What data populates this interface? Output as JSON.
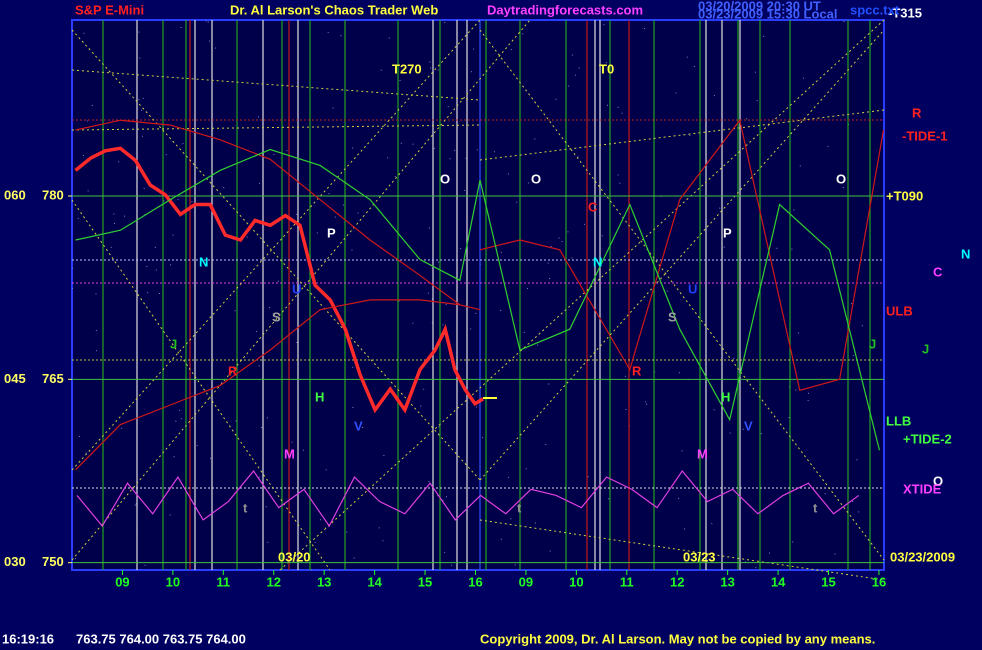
{
  "header": {
    "symbol": "S&P E-Mini",
    "title": "Dr. Al Larson's Chaos Trader Web",
    "site": "Daytradingforecasts.com",
    "stamp_ut": "03/20/2009 20:30 UT",
    "stamp_local": "03/23/2009 15:30 Local",
    "file": "spcc.txt"
  },
  "footer": {
    "time": "16:19:16",
    "quote": "763.75 764.00 763.75 764.00",
    "copyright": "Copyright 2009, Dr. Al Larson. May not be copied by any means."
  },
  "chart_data": {
    "type": "line",
    "xlim": [
      -1,
      15.1
    ],
    "xticks": [
      {
        "value": 0,
        "label": "09"
      },
      {
        "value": 1,
        "label": "10"
      },
      {
        "value": 2,
        "label": "11"
      },
      {
        "value": 3,
        "label": "12"
      },
      {
        "value": 4,
        "label": "13"
      },
      {
        "value": 5,
        "label": "14"
      },
      {
        "value": 6,
        "label": "15"
      },
      {
        "value": 7,
        "label": "16"
      },
      {
        "value": 8,
        "label": "09"
      },
      {
        "value": 9,
        "label": "10"
      },
      {
        "value": 10,
        "label": "11"
      },
      {
        "value": 11,
        "label": "12"
      },
      {
        "value": 12,
        "label": "13"
      },
      {
        "value": 13,
        "label": "14"
      },
      {
        "value": 14,
        "label": "15"
      },
      {
        "value": 15,
        "label": "16"
      }
    ],
    "ylim": [
      749.4,
      794.4
    ],
    "yticks": [
      750,
      765,
      780
    ],
    "y2lim": [
      29.4,
      74.4
    ],
    "y2ticks": [
      {
        "value": 30,
        "label": "030"
      },
      {
        "value": 45,
        "label": "045"
      },
      {
        "value": 60,
        "label": "060"
      }
    ],
    "series": [
      {
        "color": "#ff2a2a",
        "x": [
          -0.93,
          -0.63,
          -0.34,
          -0.04,
          0.26,
          0.55,
          0.85,
          1.15,
          1.44,
          1.74,
          2.04,
          2.34,
          2.63,
          2.93,
          3.23,
          3.52,
          3.82,
          4.12,
          4.42,
          4.71,
          5.01,
          5.31,
          5.6,
          5.9,
          6.2,
          6.4,
          6.59,
          6.79,
          6.99,
          7.15
        ],
        "values": [
          782.1,
          783.1,
          783.7,
          783.9,
          782.9,
          780.9,
          780.1,
          778.5,
          779.3,
          779.3,
          776.8,
          776.4,
          778.0,
          777.6,
          778.4,
          777.6,
          772.7,
          771.5,
          769.1,
          765.4,
          762.5,
          764.2,
          762.5,
          765.8,
          767.4,
          769.1,
          765.8,
          764.2,
          763.0,
          763.4
        ]
      },
      {
        "color": "#d01818",
        "x": [
          -0.93,
          -0.04,
          0.95,
          1.94,
          2.93,
          3.92,
          4.91,
          5.9,
          6.69,
          7.09
        ],
        "values": [
          785.4,
          786.2,
          785.8,
          784.6,
          783.0,
          779.7,
          776.4,
          773.5,
          771.1,
          770.7
        ]
      },
      {
        "color": "#d01818",
        "x": [
          -0.93,
          -0.04,
          0.95,
          1.94,
          2.93,
          3.92,
          4.91,
          5.9,
          6.69
        ],
        "values": [
          757.6,
          761.3,
          762.9,
          764.5,
          767.4,
          770.7,
          771.5,
          771.5,
          771.1
        ]
      },
      {
        "color": "#d01818",
        "x": [
          7.09,
          7.88,
          8.67,
          10.06,
          11.05,
          12.24,
          13.43,
          14.22,
          15.09
        ],
        "values": [
          775.6,
          776.4,
          775.6,
          765.8,
          779.7,
          786.2,
          764.1,
          765.0,
          785.4
        ]
      },
      {
        "color": "#30d030",
        "x": [
          -0.93,
          -0.04,
          0.95,
          1.94,
          2.93,
          3.92,
          4.91,
          5.9,
          6.69,
          7.09,
          7.88,
          8.87,
          10.06,
          11.05,
          12.04,
          13.03,
          14.02,
          15.01
        ],
        "values": [
          776.4,
          777.2,
          779.7,
          782.1,
          783.8,
          782.5,
          779.7,
          774.8,
          773.1,
          781.3,
          767.4,
          769.1,
          779.3,
          769.1,
          761.7,
          779.3,
          775.6,
          759.2
        ]
      },
      {
        "color": "#e040e0",
        "x": [
          -0.9,
          -0.4,
          0.1,
          0.6,
          1.1,
          1.6,
          2.1,
          2.6,
          3.1,
          3.6,
          4.1,
          4.6,
          5.1,
          5.6,
          6.1,
          6.6,
          7.1,
          7.6,
          8.1,
          8.6,
          9.1,
          9.6,
          10.1,
          10.6,
          11.1,
          11.6,
          12.1,
          12.6,
          13.1,
          13.6,
          14.1,
          14.6
        ],
        "values": [
          755.5,
          753.0,
          756.5,
          754.0,
          757.0,
          753.5,
          755.0,
          757.5,
          754.5,
          756.0,
          753.0,
          757.0,
          755.0,
          754.0,
          756.5,
          753.5,
          755.5,
          754.0,
          756.0,
          755.5,
          754.5,
          757.0,
          756.0,
          754.5,
          757.5,
          755.0,
          756.0,
          754.0,
          755.5,
          756.5,
          754.0,
          755.5
        ]
      }
    ],
    "annotations": [
      {
        "text": "T270",
        "color": "#ffff40"
      },
      {
        "text": "T0",
        "color": "#ffff40"
      },
      {
        "text": "O",
        "color": "#ffffff"
      },
      {
        "text": "O",
        "color": "#ffffff"
      },
      {
        "text": "O",
        "color": "#ffffff"
      },
      {
        "text": "P",
        "color": "#ffffff"
      },
      {
        "text": "P",
        "color": "#ffffff"
      },
      {
        "text": "N",
        "color": "#00ffff"
      },
      {
        "text": "N",
        "color": "#00ffff"
      },
      {
        "text": "S",
        "color": "#a0a0a0"
      },
      {
        "text": "S",
        "color": "#a0a0a0"
      },
      {
        "text": "C",
        "color": "#ff2020"
      },
      {
        "text": "R",
        "color": "#ff2020"
      },
      {
        "text": "R",
        "color": "#ff2020"
      },
      {
        "text": "J",
        "color": "#20c020"
      },
      {
        "text": "J",
        "color": "#20c020"
      },
      {
        "text": "H",
        "color": "#40ff40"
      },
      {
        "text": "H",
        "color": "#40ff40"
      },
      {
        "text": "V",
        "color": "#3050ff"
      },
      {
        "text": "V",
        "color": "#3050ff"
      },
      {
        "text": "M",
        "color": "#ff40ff"
      },
      {
        "text": "M",
        "color": "#ff40ff"
      },
      {
        "text": "t",
        "color": "#909090"
      },
      {
        "text": "t",
        "color": "#909090"
      },
      {
        "text": "t",
        "color": "#909090"
      },
      {
        "text": "U",
        "color": "#2040ff"
      },
      {
        "text": "U",
        "color": "#2040ff"
      },
      {
        "text": "-T315",
        "color": "#ffffff"
      },
      {
        "text": "R",
        "color": "#ff2020"
      },
      {
        "text": "-TIDE-1",
        "color": "#ff2020"
      },
      {
        "text": "+T090",
        "color": "#ffff40"
      },
      {
        "text": "N",
        "color": "#00ffff"
      },
      {
        "text": "C",
        "color": "#ff40ff"
      },
      {
        "text": "ULB",
        "color": "#ff2020"
      },
      {
        "text": "J",
        "color": "#20c020"
      },
      {
        "text": "LLB",
        "color": "#40ff40"
      },
      {
        "text": "+TIDE-2",
        "color": "#40ff40"
      },
      {
        "text": "O",
        "color": "#ffffff"
      },
      {
        "text": "XTIDE",
        "color": "#ff40ff"
      },
      {
        "text": "03/20",
        "color": "#ffff40"
      },
      {
        "text": "03/23",
        "color": "#ffff40"
      },
      {
        "text": "03/23/2009",
        "color": "#ffff40"
      }
    ]
  }
}
